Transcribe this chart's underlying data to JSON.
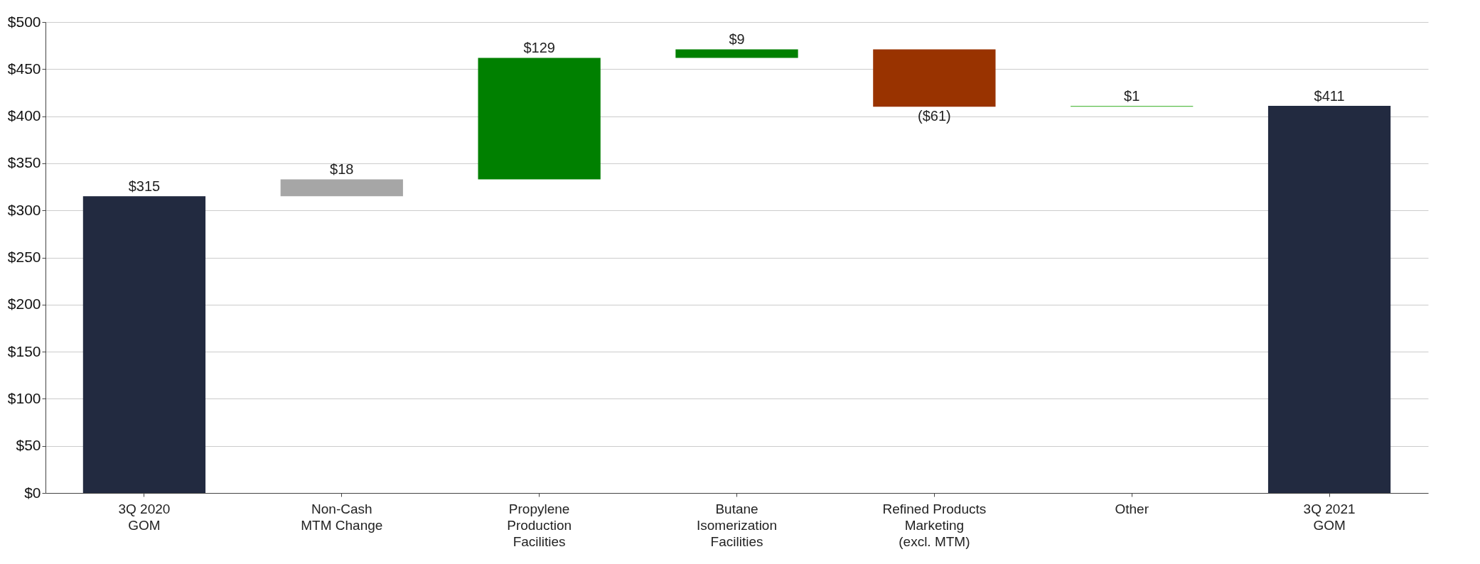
{
  "chart_data": {
    "type": "bar",
    "categories": [
      "3Q 2020\nGOM",
      "Non-Cash\nMTM Change",
      "Propylene\nProduction\nFacilities",
      "Butane\nIsomerization\nFacilities",
      "Refined Products\nMarketing\n(excl. MTM)",
      "Other",
      "3Q 2021\nGOM"
    ],
    "values": [
      315,
      18,
      129,
      9,
      -61,
      1,
      411
    ],
    "base": [
      0,
      315,
      333,
      462,
      471,
      410,
      0
    ],
    "colors": [
      "#222a40",
      "#a6a6a6",
      "#008000",
      "#008000",
      "#993300",
      "#5cbf4c",
      "#222a40"
    ],
    "value_labels": [
      "$315",
      "$18",
      "$129",
      "$9",
      "($61)",
      "$1",
      "$411"
    ],
    "ylim": [
      0,
      500
    ],
    "yticks": [
      {
        "value": 0,
        "label": "$0"
      },
      {
        "value": 50,
        "label": "$50"
      },
      {
        "value": 100,
        "label": "$100"
      },
      {
        "value": 150,
        "label": "$150"
      },
      {
        "value": 200,
        "label": "$200"
      },
      {
        "value": 250,
        "label": "$250"
      },
      {
        "value": 300,
        "label": "$300"
      },
      {
        "value": 350,
        "label": "$350"
      },
      {
        "value": 400,
        "label": "$400"
      },
      {
        "value": 450,
        "label": "$450"
      },
      {
        "value": 500,
        "label": "$500"
      }
    ],
    "grid": "y"
  }
}
